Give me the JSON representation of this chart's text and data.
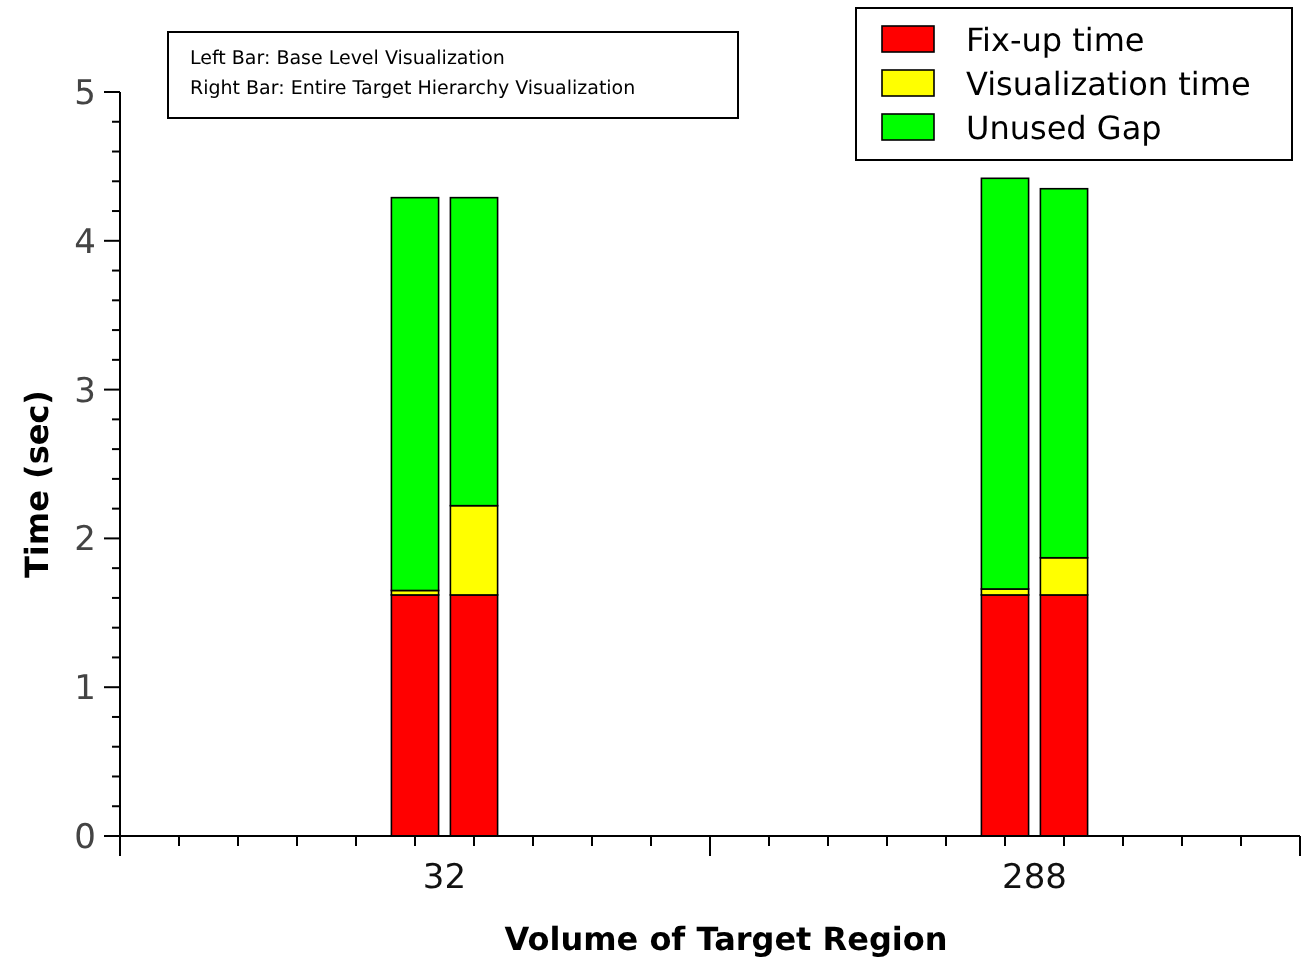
{
  "chart_data": {
    "type": "bar",
    "stacked": true,
    "xlabel": "Volume of Target Region",
    "ylabel": "Time (sec)",
    "categories": [
      null,
      null,
      null,
      null,
      null,
      null,
      null,
      null,
      null,
      null,
      null,
      "32",
      null,
      null,
      null,
      null,
      null,
      null,
      null,
      null,
      null,
      null,
      null,
      null,
      null,
      null,
      null,
      null,
      null,
      null,
      null,
      "288",
      null,
      null,
      null,
      null,
      null,
      null,
      null,
      null,
      null
    ],
    "series": [
      {
        "name": "Fix-up time",
        "color": "#ff0000",
        "values": [
          null,
          null,
          null,
          null,
          null,
          null,
          null,
          null,
          null,
          null,
          1.62,
          null,
          1.62,
          null,
          null,
          null,
          null,
          null,
          null,
          null,
          null,
          null,
          null,
          null,
          null,
          null,
          null,
          null,
          null,
          null,
          1.62,
          null,
          1.62,
          null,
          null,
          null,
          null,
          null,
          null,
          null,
          null
        ]
      },
      {
        "name": "Visualization time",
        "color": "#ffff00",
        "values": [
          null,
          null,
          null,
          null,
          null,
          null,
          null,
          null,
          null,
          null,
          0.03,
          null,
          0.6,
          null,
          null,
          null,
          null,
          null,
          null,
          null,
          null,
          null,
          null,
          null,
          null,
          null,
          null,
          null,
          null,
          null,
          0.04,
          null,
          0.25,
          null,
          null,
          null,
          null,
          null,
          null,
          null,
          null
        ]
      },
      {
        "name": "Unused Gap",
        "color": "#00ff00",
        "values": [
          null,
          null,
          null,
          null,
          null,
          null,
          null,
          null,
          null,
          null,
          2.64,
          null,
          2.07,
          null,
          null,
          null,
          null,
          null,
          null,
          null,
          null,
          null,
          null,
          null,
          null,
          null,
          null,
          null,
          null,
          null,
          2.76,
          null,
          2.48,
          null,
          null,
          null,
          null,
          null,
          null,
          null,
          null
        ]
      }
    ],
    "ylim": [
      0,
      5
    ],
    "yticks": [
      0,
      {
        "value": 0.2,
        "label": null
      },
      {
        "value": 0.4,
        "label": null
      },
      {
        "value": 0.6,
        "label": null
      },
      {
        "value": 0.8,
        "label": null
      },
      1,
      {
        "value": 1.2,
        "label": null
      },
      {
        "value": 1.4,
        "label": null
      },
      {
        "value": 1.6,
        "label": null
      },
      {
        "value": 1.8,
        "label": null
      },
      2,
      {
        "value": 2.2,
        "label": null
      },
      {
        "value": 2.4,
        "label": null
      },
      {
        "value": 2.6,
        "label": null
      },
      {
        "value": 2.8,
        "label": null
      },
      3,
      {
        "value": 3.2,
        "label": null
      },
      {
        "value": 3.4,
        "label": null
      },
      {
        "value": 3.6,
        "label": null
      },
      {
        "value": 3.8,
        "label": null
      },
      4,
      {
        "value": 4.2,
        "label": null
      },
      {
        "value": 4.4,
        "label": null
      },
      {
        "value": 4.6,
        "label": null
      },
      {
        "value": 4.8,
        "label": null
      },
      5
    ],
    "legend": "top right",
    "grid": false,
    "annotations": [
      "Left Bar: Base Level Visualization",
      "Right Bar: Entire Target Hierarchy Visualization"
    ]
  }
}
